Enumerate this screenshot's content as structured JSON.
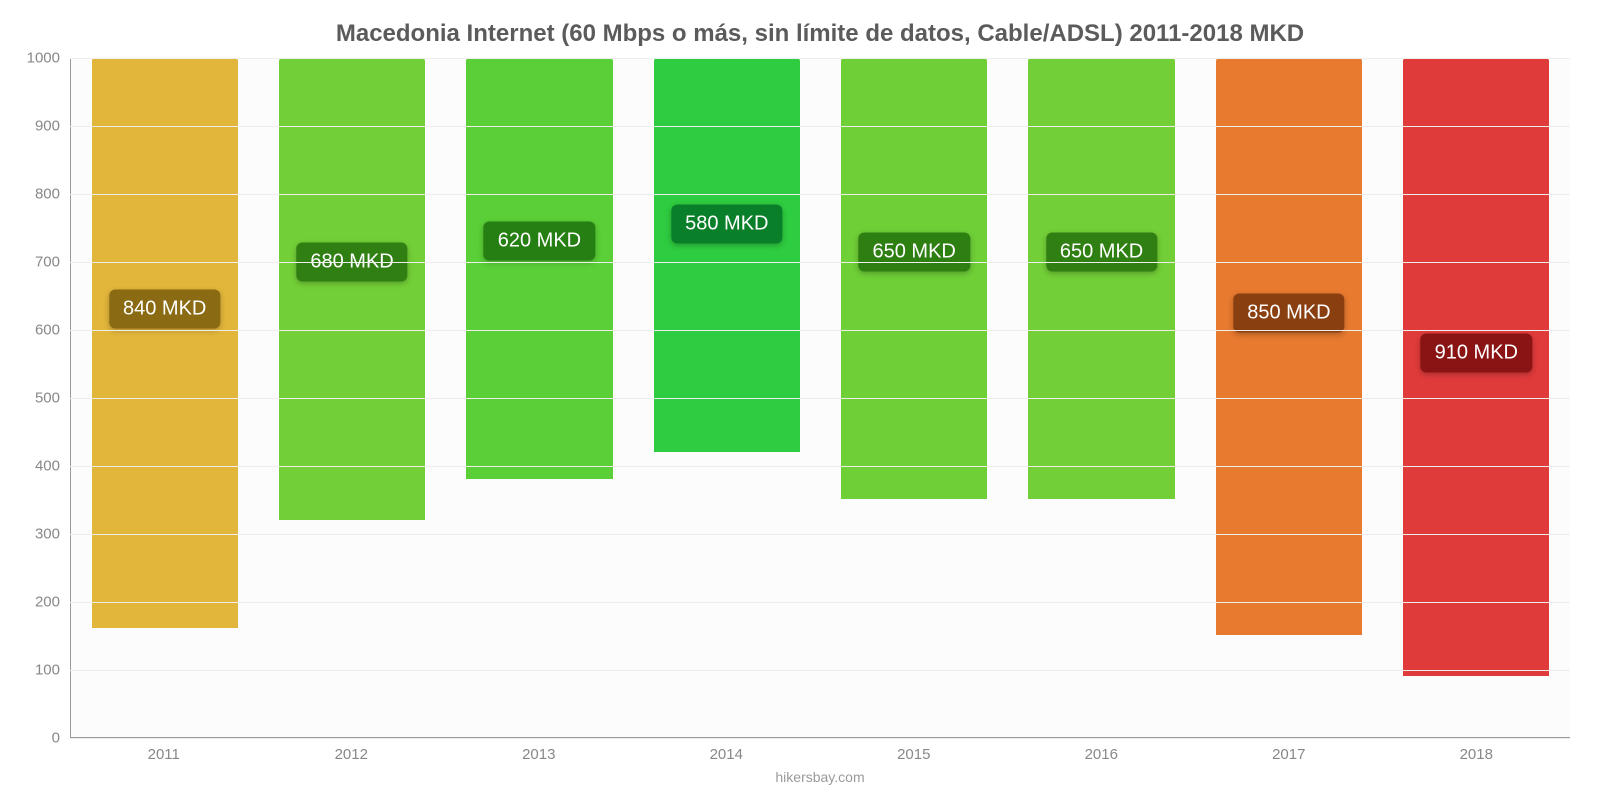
{
  "chart": {
    "type": "bar",
    "title": "Macedonia Internet (60 Mbps o más, sin límite de datos, Cable/ADSL) 2011-2018 MKD",
    "title_fontsize": 24,
    "title_color": "#5b5b5b",
    "footer": "hikersbay.com",
    "footer_color": "#9a9a9a",
    "footer_fontsize": 14,
    "background_color": "#fcfcfc",
    "grid_color": "#eeeeee",
    "axis_color": "#999999",
    "tick_color": "#888888",
    "tick_fontsize": 15,
    "label_fontsize": 20,
    "label_text_color": "#ffffff",
    "bar_width_pct": 78,
    "bar_border_radius": 3,
    "ylim": [
      0,
      1000
    ],
    "ytick_step": 100,
    "categories": [
      "2011",
      "2012",
      "2013",
      "2014",
      "2015",
      "2016",
      "2017",
      "2018"
    ],
    "values": [
      840,
      680,
      620,
      580,
      650,
      650,
      850,
      910
    ],
    "value_labels": [
      "840 MKD",
      "680 MKD",
      "620 MKD",
      "580 MKD",
      "650 MKD",
      "650 MKD",
      "850 MKD",
      "910 MKD"
    ],
    "bar_colors": [
      "#e2b63b",
      "#73cf37",
      "#5bcf37",
      "#2ecc40",
      "#6fcf37",
      "#73cf37",
      "#e77a2f",
      "#e03b3b"
    ],
    "label_bg_colors": [
      "#8a6a12",
      "#2f7f12",
      "#257f12",
      "#0a7f2a",
      "#2d7f12",
      "#2f7f12",
      "#8a3f10",
      "#8a1414"
    ],
    "label_y_pos": [
      470,
      380,
      350,
      335,
      365,
      365,
      475,
      475
    ]
  }
}
